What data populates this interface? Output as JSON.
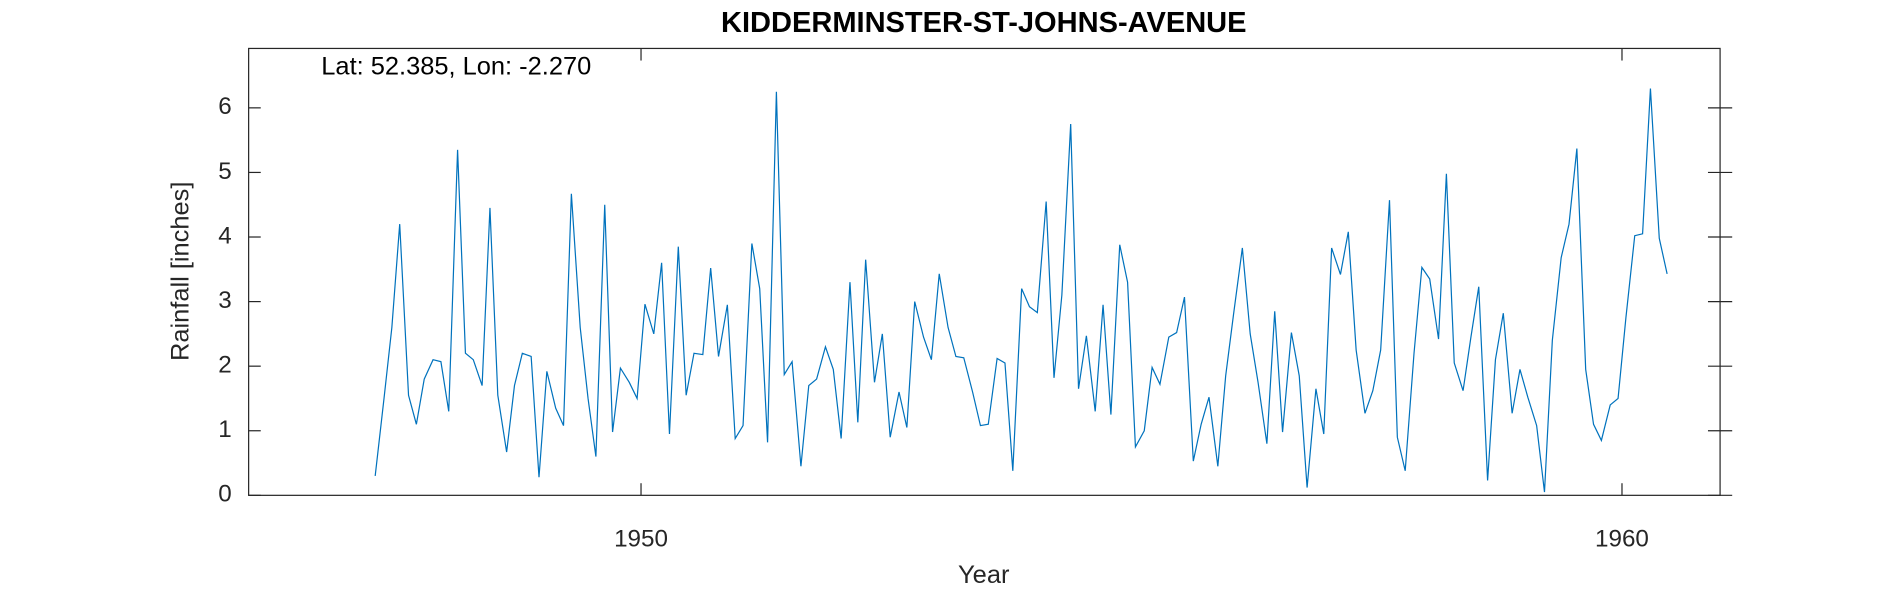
{
  "chart_data": {
    "type": "line",
    "title": "KIDDERMINSTER-ST-JOHNS-AVENUE",
    "annotation": "Lat: 52.385, Lon: -2.270",
    "x_label": "Year",
    "y_label": "Rainfall [inches]",
    "xlim": [
      1946,
      1961
    ],
    "xticks": [
      1950,
      1960
    ],
    "ylim": [
      0,
      6.92
    ],
    "yticks": [
      0,
      1,
      2,
      3,
      4,
      5,
      6
    ],
    "grid": false,
    "series": [
      {
        "name": "Rainfall",
        "color": "#0072bd",
        "x": [
          1947.29,
          1947.38,
          1947.46,
          1947.54,
          1947.63,
          1947.71,
          1947.79,
          1947.88,
          1947.96,
          1948.04,
          1948.13,
          1948.21,
          1948.29,
          1948.38,
          1948.46,
          1948.54,
          1948.63,
          1948.71,
          1948.79,
          1948.88,
          1948.96,
          1949.04,
          1949.13,
          1949.21,
          1949.29,
          1949.38,
          1949.46,
          1949.54,
          1949.63,
          1949.71,
          1949.79,
          1949.88,
          1949.96,
          1950.04,
          1950.13,
          1950.21,
          1950.29,
          1950.38,
          1950.46,
          1950.54,
          1950.63,
          1950.71,
          1950.79,
          1950.88,
          1950.96,
          1951.04,
          1951.13,
          1951.21,
          1951.29,
          1951.38,
          1951.46,
          1951.54,
          1951.63,
          1951.71,
          1951.79,
          1951.88,
          1951.96,
          1952.04,
          1952.13,
          1952.21,
          1952.29,
          1952.38,
          1952.46,
          1952.54,
          1952.63,
          1952.71,
          1952.79,
          1952.88,
          1952.96,
          1953.04,
          1953.13,
          1953.21,
          1953.29,
          1953.38,
          1953.46,
          1953.54,
          1953.63,
          1953.71,
          1953.79,
          1953.88,
          1953.96,
          1954.04,
          1954.13,
          1954.21,
          1954.29,
          1954.38,
          1954.46,
          1954.54,
          1954.63,
          1954.71,
          1954.79,
          1954.88,
          1954.96,
          1955.04,
          1955.13,
          1955.21,
          1955.29,
          1955.38,
          1955.46,
          1955.54,
          1955.63,
          1955.71,
          1955.79,
          1955.88,
          1955.96,
          1956.04,
          1956.13,
          1956.21,
          1956.29,
          1956.38,
          1956.46,
          1956.54,
          1956.63,
          1956.71,
          1956.79,
          1956.88,
          1956.96,
          1957.04,
          1957.13,
          1957.21,
          1957.29,
          1957.38,
          1957.46,
          1957.54,
          1957.63,
          1957.71,
          1957.79,
          1957.88,
          1957.96,
          1958.04,
          1958.13,
          1958.21,
          1958.29,
          1958.38,
          1958.46,
          1958.54,
          1958.63,
          1958.71,
          1958.79,
          1958.88,
          1958.96,
          1959.04,
          1959.13,
          1959.21,
          1959.29,
          1959.38,
          1959.46,
          1959.54,
          1959.63,
          1959.71,
          1959.79,
          1959.88,
          1959.96,
          1960.04,
          1960.13,
          1960.21,
          1960.29,
          1960.38,
          1960.46
        ],
        "values": [
          0.3,
          1.5,
          2.6,
          4.2,
          1.55,
          1.1,
          1.8,
          2.1,
          2.07,
          1.3,
          5.35,
          2.2,
          2.1,
          1.7,
          4.45,
          1.55,
          0.67,
          1.7,
          2.2,
          2.15,
          0.28,
          1.92,
          1.35,
          1.08,
          4.67,
          2.6,
          1.5,
          0.6,
          4.5,
          0.98,
          1.97,
          1.75,
          1.5,
          2.96,
          2.5,
          3.6,
          0.95,
          3.85,
          1.55,
          2.2,
          2.18,
          3.52,
          2.15,
          2.95,
          0.88,
          1.08,
          3.9,
          3.2,
          0.82,
          6.25,
          1.87,
          2.07,
          0.45,
          1.7,
          1.8,
          2.3,
          1.95,
          0.88,
          3.3,
          1.13,
          3.65,
          1.75,
          2.5,
          0.9,
          1.6,
          1.05,
          3.0,
          2.45,
          2.1,
          3.43,
          2.6,
          2.15,
          2.13,
          1.6,
          1.08,
          1.1,
          2.12,
          2.05,
          0.38,
          3.2,
          2.92,
          2.83,
          4.55,
          1.82,
          3.1,
          5.75,
          1.65,
          2.47,
          1.3,
          2.95,
          1.25,
          3.88,
          3.3,
          0.75,
          1.0,
          1.98,
          1.72,
          2.45,
          2.52,
          3.07,
          0.53,
          1.1,
          1.52,
          0.45,
          1.85,
          2.8,
          3.83,
          2.5,
          1.75,
          0.8,
          2.85,
          0.98,
          2.52,
          1.85,
          0.12,
          1.65,
          0.95,
          3.83,
          3.42,
          4.08,
          2.25,
          1.27,
          1.62,
          2.25,
          4.57,
          0.9,
          0.38,
          2.2,
          3.53,
          3.35,
          2.42,
          4.98,
          2.05,
          1.62,
          2.45,
          3.23,
          0.23,
          2.1,
          2.82,
          1.27,
          1.95,
          1.52,
          1.08,
          0.05,
          2.4,
          3.68,
          4.2,
          5.37,
          1.95,
          1.1,
          0.85,
          1.4,
          1.5,
          2.75,
          4.02,
          4.05,
          6.3,
          3.98,
          3.43
        ]
      }
    ]
  }
}
